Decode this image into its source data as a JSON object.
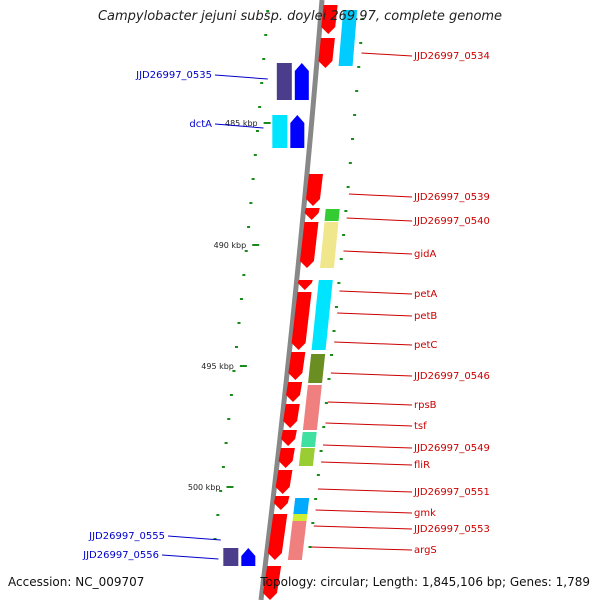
{
  "title": "Campylobacter jejuni subsp. doylei 269.97, complete genome",
  "footer": {
    "accession": "Accession: NC_009707",
    "stats": "Topology: circular; Length: 1,845,106 bp; Genes: 1,789"
  },
  "ticks": [
    "485 kbp",
    "490 kbp",
    "495 kbp",
    "500 kbp"
  ],
  "colors": {
    "backbone": "#888888",
    "tick": "#1a8a1a",
    "cds_strand": "#ff0000",
    "left_label": "#0000cc",
    "right_label": "#cc0000"
  },
  "genes_left": [
    {
      "label": "JJD26997_0535",
      "cog_color": "#4b3c8c",
      "arrow_color": "#0000ff"
    },
    {
      "label": "dctA",
      "cog_color": "#00e5ff",
      "arrow_color": "#0000ff"
    },
    {
      "label": "JJD26997_0555",
      "cog_color": "#4b3c8c",
      "arrow_color": "#0000ff"
    },
    {
      "label": "JJD26997_0556",
      "cog_color": "#4b3c8c",
      "arrow_color": "#0000ff"
    }
  ],
  "genes_right": [
    {
      "label": "JJD26997_0534",
      "cog_color": "#00ccff"
    },
    {
      "label": "JJD26997_0539",
      "cog_color": ""
    },
    {
      "label": "JJD26997_0540",
      "cog_color": "#33cc33"
    },
    {
      "label": "gidA",
      "cog_color": "#f0e68c"
    },
    {
      "label": "petA",
      "cog_color": "#00e5ff"
    },
    {
      "label": "petB",
      "cog_color": "#00e5ff"
    },
    {
      "label": "petC",
      "cog_color": "#00e5ff"
    },
    {
      "label": "JJD26997_0546",
      "cog_color": "#6b8e23"
    },
    {
      "label": "rpsB",
      "cog_color": "#f08080"
    },
    {
      "label": "tsf",
      "cog_color": "#f08080"
    },
    {
      "label": "JJD26997_0549",
      "cog_color": "#40e0a0"
    },
    {
      "label": "fliR",
      "cog_color": "#9acd32"
    },
    {
      "label": "JJD26997_0551",
      "cog_color": ""
    },
    {
      "label": "gmk",
      "cog_color": "#00aaff"
    },
    {
      "label": "JJD26997_0553",
      "cog_color": "#ccee33"
    },
    {
      "label": "argS",
      "cog_color": "#f08080"
    }
  ]
}
